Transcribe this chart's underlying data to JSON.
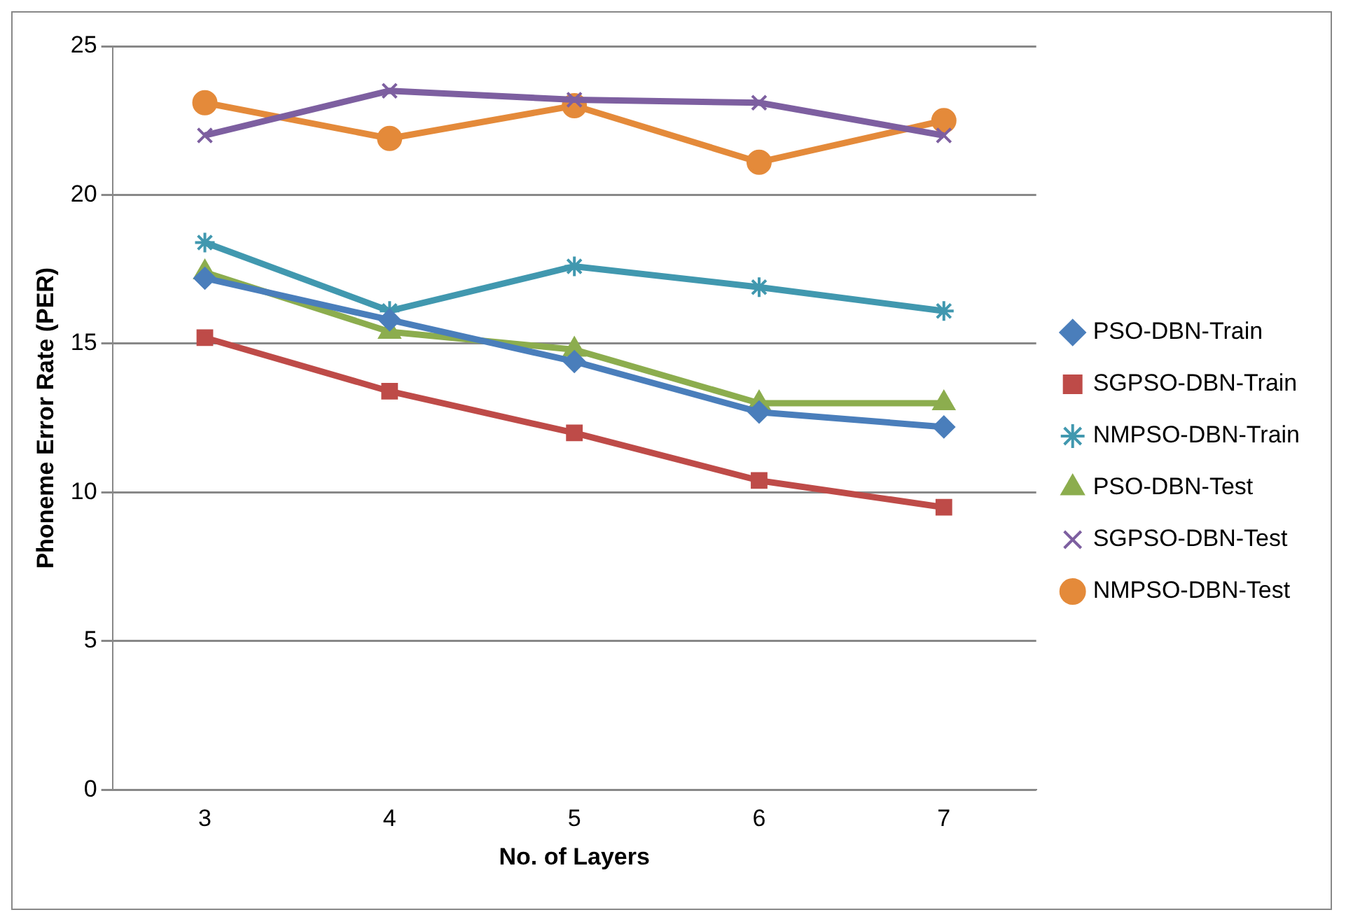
{
  "chart_data": {
    "type": "line",
    "xlabel": "No. of Layers",
    "ylabel": "Phoneme Error Rate (PER)",
    "categories": [
      "3",
      "4",
      "5",
      "6",
      "7"
    ],
    "ylim": [
      0,
      25
    ],
    "yticks": [
      0,
      5,
      10,
      15,
      20,
      25
    ],
    "grid": "y",
    "legend": "right",
    "series": [
      {
        "name": "PSO-DBN-Train",
        "color": "#4a7ebb",
        "marker": "diamond",
        "values": [
          17.2,
          15.8,
          14.4,
          12.7,
          12.2
        ]
      },
      {
        "name": "SGPSO-DBN-Train",
        "color": "#be4b48",
        "marker": "square",
        "values": [
          15.2,
          13.4,
          12.0,
          10.4,
          9.5
        ]
      },
      {
        "name": "NMPSO-DBN-Train",
        "color": "#4198af",
        "marker": "cross",
        "values": [
          18.4,
          16.1,
          17.6,
          16.9,
          16.1
        ]
      },
      {
        "name": "PSO-DBN-Test",
        "color": "#8cad4e",
        "marker": "triangle",
        "values": [
          17.4,
          15.4,
          14.8,
          13.0,
          13.0
        ]
      },
      {
        "name": "SGPSO-DBN-Test",
        "color": "#7d5fa0",
        "marker": "cross",
        "values": [
          22.0,
          23.5,
          23.2,
          23.1,
          22.0
        ]
      },
      {
        "name": "NMPSO-DBN-Test",
        "color": "#e48a3a",
        "marker": "circle",
        "values": [
          23.1,
          21.9,
          23.0,
          21.1,
          22.5
        ]
      }
    ]
  }
}
